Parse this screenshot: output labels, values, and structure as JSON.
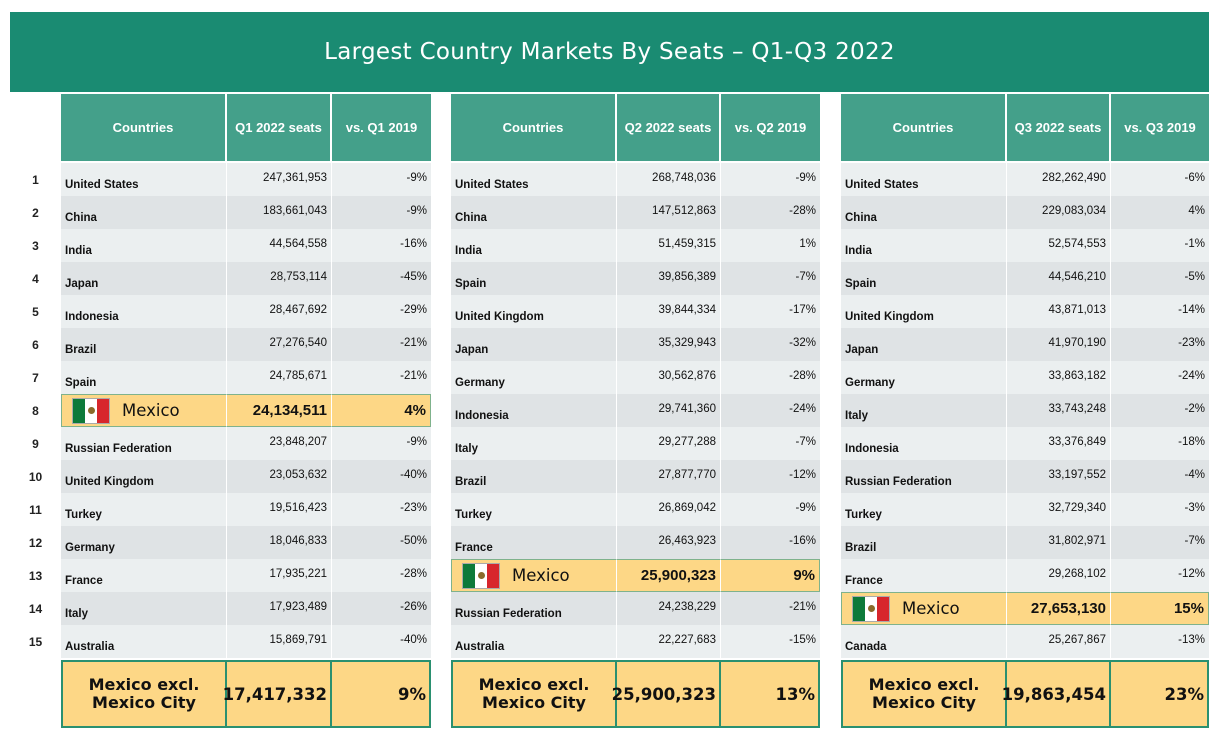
{
  "title": "Largest Country Markets By Seats – Q1-Q3 2022",
  "ranks": [
    "1",
    "2",
    "3",
    "4",
    "5",
    "6",
    "7",
    "8",
    "9",
    "10",
    "11",
    "12",
    "13",
    "14",
    "15"
  ],
  "colors": {
    "banner": "#1a8b72",
    "header": "#44a08a",
    "highlight": "#fdd786",
    "negative": "#e0213a"
  },
  "tables": [
    {
      "headers": {
        "country": "Countries",
        "seats": "Q1 2022 seats",
        "change": "vs. Q1 2019"
      },
      "rows": [
        {
          "country": "United States",
          "seats": "247,361,953",
          "change": "-9%"
        },
        {
          "country": "China",
          "seats": "183,661,043",
          "change": "-9%"
        },
        {
          "country": "India",
          "seats": "44,564,558",
          "change": "-16%"
        },
        {
          "country": "Japan",
          "seats": "28,753,114",
          "change": "-45%"
        },
        {
          "country": "Indonesia",
          "seats": "28,467,692",
          "change": "-29%"
        },
        {
          "country": "Brazil",
          "seats": "27,276,540",
          "change": "-21%"
        },
        {
          "country": "Spain",
          "seats": "24,785,671",
          "change": "-21%"
        },
        {
          "country": "Mexico",
          "seats": "24,134,511",
          "change": "4%",
          "highlight": true,
          "flag": "mexico-flag-icon"
        },
        {
          "country": "Russian Federation",
          "seats": "23,848,207",
          "change": "-9%"
        },
        {
          "country": "United Kingdom",
          "seats": "23,053,632",
          "change": "-40%"
        },
        {
          "country": "Turkey",
          "seats": "19,516,423",
          "change": "-23%"
        },
        {
          "country": "Germany",
          "seats": "18,046,833",
          "change": "-50%"
        },
        {
          "country": "France",
          "seats": "17,935,221",
          "change": "-28%"
        },
        {
          "country": "Italy",
          "seats": "17,923,489",
          "change": "-26%"
        },
        {
          "country": "Australia",
          "seats": "15,869,791",
          "change": "-40%"
        }
      ],
      "footer": {
        "label": "Mexico excl.\nMexico City",
        "seats": "17,417,332",
        "change": "9%"
      }
    },
    {
      "headers": {
        "country": "Countries",
        "seats": "Q2 2022 seats",
        "change": "vs. Q2 2019"
      },
      "rows": [
        {
          "country": "United States",
          "seats": "268,748,036",
          "change": "-9%"
        },
        {
          "country": "China",
          "seats": "147,512,863",
          "change": "-28%"
        },
        {
          "country": "India",
          "seats": "51,459,315",
          "change": "1%"
        },
        {
          "country": "Spain",
          "seats": "39,856,389",
          "change": "-7%"
        },
        {
          "country": "United Kingdom",
          "seats": "39,844,334",
          "change": "-17%"
        },
        {
          "country": "Japan",
          "seats": "35,329,943",
          "change": "-32%"
        },
        {
          "country": "Germany",
          "seats": "30,562,876",
          "change": "-28%"
        },
        {
          "country": "Indonesia",
          "seats": "29,741,360",
          "change": "-24%"
        },
        {
          "country": "Italy",
          "seats": "29,277,288",
          "change": "-7%"
        },
        {
          "country": "Brazil",
          "seats": "27,877,770",
          "change": "-12%"
        },
        {
          "country": "Turkey",
          "seats": "26,869,042",
          "change": "-9%"
        },
        {
          "country": "France",
          "seats": "26,463,923",
          "change": "-16%"
        },
        {
          "country": "Mexico",
          "seats": "25,900,323",
          "change": "9%",
          "highlight": true,
          "flag": "mexico-flag-icon"
        },
        {
          "country": "Russian Federation",
          "seats": "24,238,229",
          "change": "-21%"
        },
        {
          "country": "Australia",
          "seats": "22,227,683",
          "change": "-15%"
        }
      ],
      "footer": {
        "label": "Mexico excl.\nMexico City",
        "seats": "25,900,323",
        "change": "13%"
      }
    },
    {
      "headers": {
        "country": "Countries",
        "seats": "Q3 2022 seats",
        "change": "vs. Q3 2019"
      },
      "rows": [
        {
          "country": "United States",
          "seats": "282,262,490",
          "change": "-6%"
        },
        {
          "country": "China",
          "seats": "229,083,034",
          "change": "4%"
        },
        {
          "country": "India",
          "seats": "52,574,553",
          "change": "-1%"
        },
        {
          "country": "Spain",
          "seats": "44,546,210",
          "change": "-5%"
        },
        {
          "country": "United Kingdom",
          "seats": "43,871,013",
          "change": "-14%"
        },
        {
          "country": "Japan",
          "seats": "41,970,190",
          "change": "-23%"
        },
        {
          "country": "Germany",
          "seats": "33,863,182",
          "change": "-24%"
        },
        {
          "country": "Italy",
          "seats": "33,743,248",
          "change": "-2%"
        },
        {
          "country": "Indonesia",
          "seats": "33,376,849",
          "change": "-18%"
        },
        {
          "country": "Russian Federation",
          "seats": "33,197,552",
          "change": "-4%"
        },
        {
          "country": "Turkey",
          "seats": "32,729,340",
          "change": "-3%"
        },
        {
          "country": "Brazil",
          "seats": "31,802,971",
          "change": "-7%"
        },
        {
          "country": "France",
          "seats": "29,268,102",
          "change": "-12%"
        },
        {
          "country": "Mexico",
          "seats": "27,653,130",
          "change": "15%",
          "highlight": true,
          "flag": "mexico-flag-icon"
        },
        {
          "country": "Canada",
          "seats": "25,267,867",
          "change": "-13%"
        }
      ],
      "footer": {
        "label": "Mexico excl.\nMexico City",
        "seats": "19,863,454",
        "change": "23%"
      }
    }
  ]
}
